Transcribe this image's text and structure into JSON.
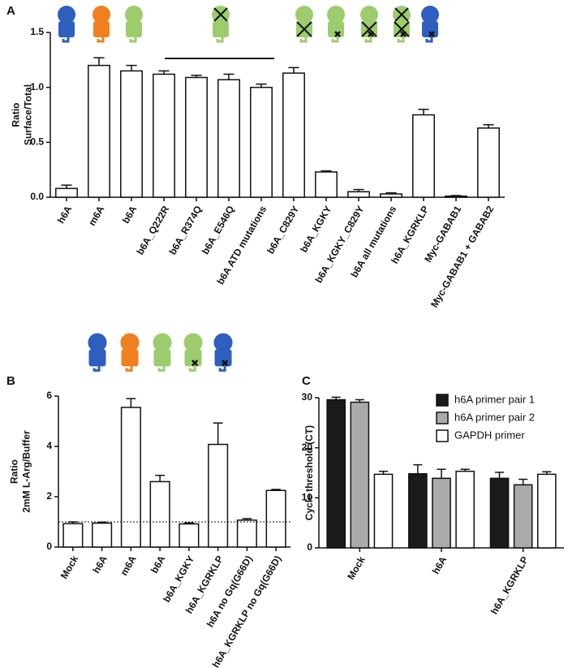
{
  "chart_data": [
    {
      "type": "bar",
      "panel": "A",
      "ylabel": [
        "Ratio",
        "Surface/Total"
      ],
      "categories": [
        "h6A",
        "m6A",
        "b6A",
        "b6A_Q222R",
        "b6A_R374Q",
        "b6A_E546Q",
        "b6A ATD mutations",
        "b6A_C829Y",
        "b6A_KGKY",
        "b6A_KGKY_C829Y",
        "b6A all mutations",
        "h6A_KGRKLP",
        "Myc-GABAB1",
        "Myc-GABAB1 + GABAB2"
      ],
      "values": [
        0.08,
        1.2,
        1.15,
        1.12,
        1.09,
        1.07,
        1.0,
        1.13,
        0.23,
        0.05,
        0.03,
        0.75,
        0.01,
        0.63
      ],
      "errors": [
        0.03,
        0.07,
        0.05,
        0.03,
        0.02,
        0.05,
        0.03,
        0.05,
        0.01,
        0.02,
        0.01,
        0.05,
        0.005,
        0.03
      ],
      "color": "#ffffff",
      "ylim": [
        0,
        1.5
      ],
      "yticks": [
        {
          "value": 0,
          "label": "0.0"
        },
        0.5,
        {
          "value": 1,
          "label": "1.0"
        },
        1.5
      ]
    },
    {
      "type": "bar",
      "panel": "B",
      "ylabel": [
        "Ratio",
        "2mM L-Arg/Buffer"
      ],
      "categories": [
        "Mock",
        "h6A",
        "m6A",
        "b6A",
        "b6A_KGKY",
        "h6A_KGRKLP",
        "h6A no Gq(G66D)",
        "h6A_KGRKLP no Gq(G66D)"
      ],
      "values": [
        0.93,
        0.95,
        5.55,
        2.6,
        0.92,
        4.08,
        1.07,
        2.25
      ],
      "errors": [
        0.07,
        0.04,
        0.35,
        0.25,
        0.04,
        0.85,
        0.06,
        0.04
      ],
      "color": "#ffffff",
      "hline": 1,
      "ylim": [
        0,
        6
      ],
      "yticks": [
        0,
        2,
        4,
        6
      ]
    },
    {
      "type": "grouped-bar",
      "panel": "C",
      "ylabel": [
        "Cycle threshold (CT)"
      ],
      "categories": [
        "Mock",
        "h6A",
        "h6A_KGRKLP"
      ],
      "series": [
        {
          "name": "h6A primer pair 1",
          "color": "#1a1a1a",
          "values": [
            29.6,
            14.8,
            13.9
          ],
          "errors": [
            0.5,
            1.8,
            1.2
          ]
        },
        {
          "name": "h6A primer pair 2",
          "color": "#aaaaaa",
          "values": [
            29.1,
            13.9,
            12.6
          ],
          "errors": [
            0.5,
            1.8,
            1.1
          ]
        },
        {
          "name": "GAPDH primer",
          "color": "#ffffff",
          "values": [
            14.7,
            15.3,
            14.7
          ],
          "errors": [
            0.6,
            0.4,
            0.5
          ]
        }
      ],
      "ylim": [
        0,
        30
      ],
      "yticks": [
        0,
        10,
        20,
        30
      ]
    }
  ]
}
